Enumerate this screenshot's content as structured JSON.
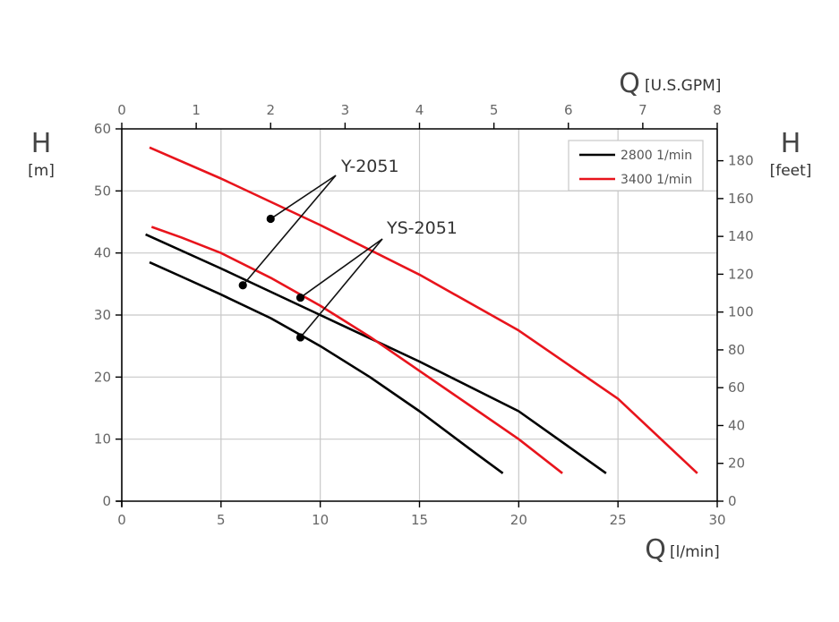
{
  "chart_data": {
    "type": "line",
    "x_bottom": {
      "label": "Q",
      "unit": "[l/min]",
      "range": [
        0,
        30
      ],
      "ticks": [
        0,
        5,
        10,
        15,
        20,
        25,
        30
      ]
    },
    "x_top": {
      "label": "Q",
      "unit": "[U.S.GPM]",
      "range": [
        0,
        8
      ],
      "ticks": [
        0,
        1,
        2,
        3,
        4,
        5,
        6,
        7,
        8
      ]
    },
    "y_left": {
      "label": "H",
      "unit": "[m]",
      "range": [
        0,
        60
      ],
      "ticks": [
        0,
        10,
        20,
        30,
        40,
        50,
        60
      ]
    },
    "y_right": {
      "label": "H",
      "unit": "[feet]",
      "range": [
        0,
        196.85
      ],
      "ticks": [
        0,
        20,
        40,
        60,
        80,
        100,
        120,
        140,
        160,
        180
      ]
    },
    "grid": true,
    "legend": {
      "position": "top-right",
      "entries": [
        {
          "label": "2800 1/min",
          "color": "#000000"
        },
        {
          "label": "3400 1/min",
          "color": "#e8141c"
        }
      ]
    },
    "series": [
      {
        "model": "Y-2051",
        "speed": "2800 1/min",
        "color": "#000000",
        "points": [
          [
            1.2,
            43.0
          ],
          [
            5,
            37.5
          ],
          [
            10,
            30.0
          ],
          [
            15,
            22.5
          ],
          [
            20,
            14.5
          ],
          [
            24.4,
            4.5
          ]
        ]
      },
      {
        "model": "Y-2051",
        "speed": "3400 1/min",
        "color": "#e8141c",
        "points": [
          [
            1.4,
            57.0
          ],
          [
            5,
            52.0
          ],
          [
            10,
            44.5
          ],
          [
            15,
            36.5
          ],
          [
            20,
            27.5
          ],
          [
            25,
            16.5
          ],
          [
            29.0,
            4.5
          ]
        ]
      },
      {
        "model": "YS-2051",
        "speed": "2800 1/min",
        "color": "#000000",
        "points": [
          [
            1.4,
            38.5
          ],
          [
            3,
            36.2
          ],
          [
            5,
            33.3
          ],
          [
            7.5,
            29.5
          ],
          [
            10,
            25.0
          ],
          [
            12.5,
            20.0
          ],
          [
            15,
            14.5
          ],
          [
            17.5,
            8.5
          ],
          [
            19.2,
            4.5
          ]
        ]
      },
      {
        "model": "YS-2051",
        "speed": "3400 1/min",
        "color": "#e8141c",
        "points": [
          [
            1.5,
            44.2
          ],
          [
            3,
            42.5
          ],
          [
            5,
            40.0
          ],
          [
            7.5,
            36.0
          ],
          [
            10,
            31.5
          ],
          [
            12.5,
            26.5
          ],
          [
            15,
            21.0
          ],
          [
            17.5,
            15.5
          ],
          [
            20,
            10.0
          ],
          [
            22.2,
            4.5
          ]
        ]
      }
    ],
    "annotations": [
      {
        "text": "Y-2051",
        "markers": [
          [
            7.5,
            45.5
          ],
          [
            6.1,
            34.8
          ]
        ]
      },
      {
        "text": "YS-2051",
        "markers": [
          [
            9.0,
            32.8
          ],
          [
            9.0,
            26.4
          ]
        ]
      }
    ]
  }
}
